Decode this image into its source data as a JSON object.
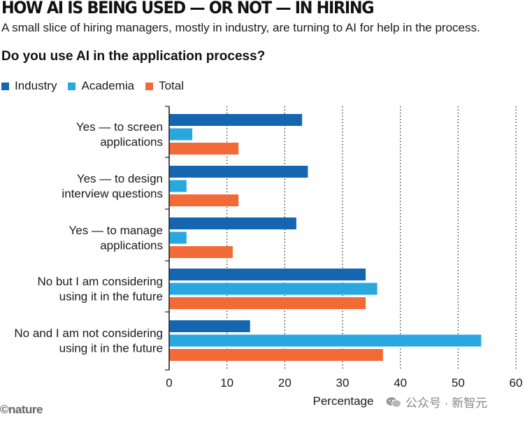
{
  "header": {
    "title": "HOW AI IS BEING USED — OR NOT — IN HIRING",
    "subtitle": "A small slice of hiring managers, mostly in industry, are turning to AI for help in the process.",
    "question": "Do you use AI in the application process?"
  },
  "legend": [
    {
      "label": "Industry",
      "color": "#1565b0"
    },
    {
      "label": "Academia",
      "color": "#29a8e0"
    },
    {
      "label": "Total",
      "color": "#f26a36"
    }
  ],
  "chart_data": {
    "type": "bar",
    "orientation": "horizontal",
    "title": "Do you use AI in the application process?",
    "xlabel": "Percentage",
    "ylabel": "",
    "xlim": [
      0,
      60
    ],
    "xticks": [
      0,
      10,
      20,
      30,
      40,
      50,
      60
    ],
    "grid": "dotted vertical",
    "legend_position": "top-left",
    "categories": [
      [
        "Yes — to screen",
        "applications"
      ],
      [
        "Yes — to design",
        "interview questions"
      ],
      [
        "Yes — to manage",
        "applications"
      ],
      [
        "No but I am considering",
        "using it in the future"
      ],
      [
        "No and I am not considering",
        "using it in the future"
      ]
    ],
    "series": [
      {
        "name": "Industry",
        "color": "#1565b0",
        "values": [
          23,
          24,
          22,
          34,
          14
        ]
      },
      {
        "name": "Academia",
        "color": "#29a8e0",
        "values": [
          4,
          3,
          3,
          36,
          54
        ]
      },
      {
        "name": "Total",
        "color": "#f26a36",
        "values": [
          12,
          12,
          11,
          34,
          37
        ]
      }
    ]
  },
  "footer": {
    "credit": "©nature",
    "watermark": "公众号 · 新智元"
  }
}
